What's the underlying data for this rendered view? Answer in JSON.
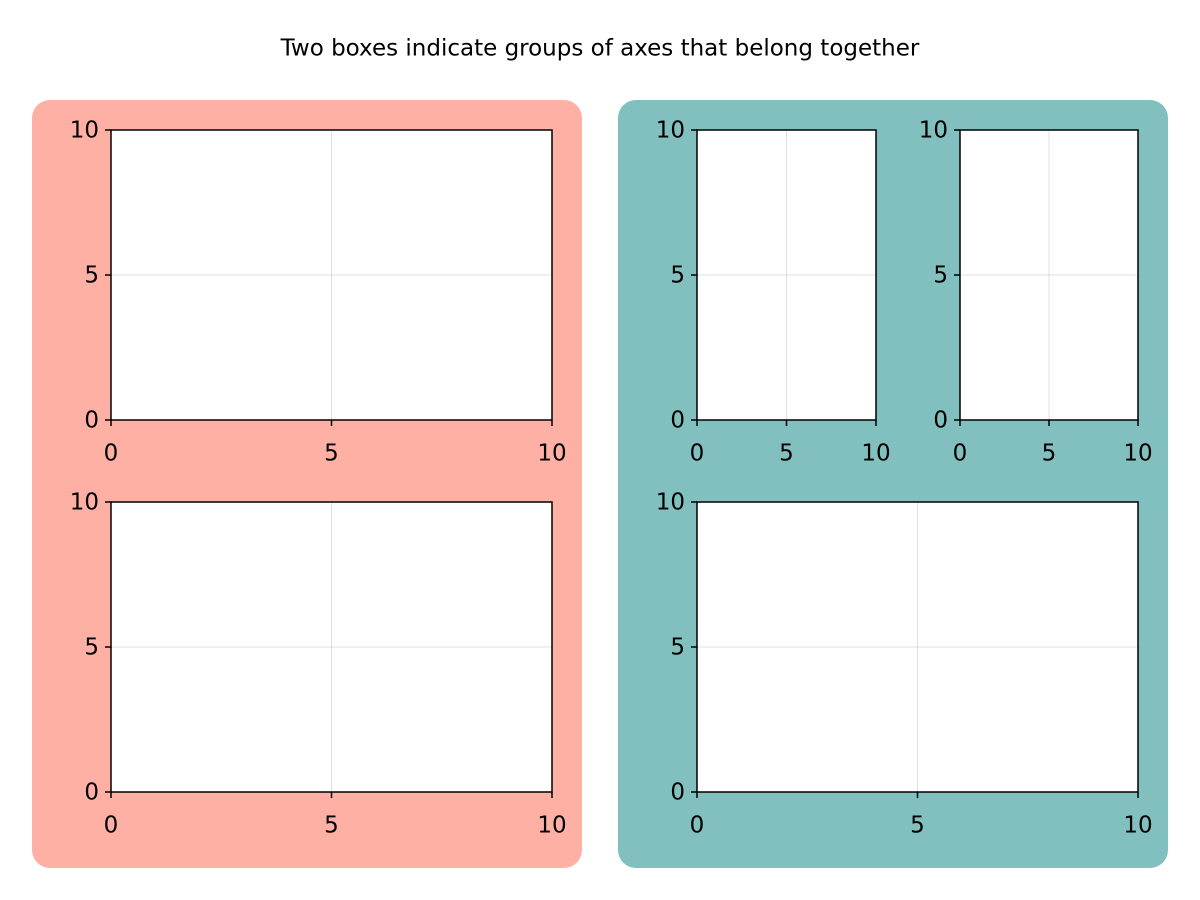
{
  "title": "Two boxes indicate groups of axes that belong together",
  "boxes": [
    {
      "color": "#ffb0a4"
    },
    {
      "color": "#82bfbf"
    }
  ],
  "chart_data": [
    {
      "type": "line",
      "xlim": [
        0,
        10
      ],
      "ylim": [
        0,
        10
      ],
      "xticks": [
        0,
        5,
        10
      ],
      "yticks": [
        0,
        5,
        10
      ],
      "grid": true
    },
    {
      "type": "line",
      "xlim": [
        0,
        10
      ],
      "ylim": [
        0,
        10
      ],
      "xticks": [
        0,
        5,
        10
      ],
      "yticks": [
        0,
        5,
        10
      ],
      "grid": true
    },
    {
      "type": "line",
      "xlim": [
        0,
        10
      ],
      "ylim": [
        0,
        10
      ],
      "xticks": [
        0,
        5,
        10
      ],
      "yticks": [
        0,
        5,
        10
      ],
      "grid": true
    },
    {
      "type": "line",
      "xlim": [
        0,
        10
      ],
      "ylim": [
        0,
        10
      ],
      "xticks": [
        0,
        5,
        10
      ],
      "yticks": [
        0,
        5,
        10
      ],
      "grid": true
    },
    {
      "type": "line",
      "xlim": [
        0,
        10
      ],
      "ylim": [
        0,
        10
      ],
      "xticks": [
        0,
        5,
        10
      ],
      "yticks": [
        0,
        5,
        10
      ],
      "grid": true
    }
  ]
}
